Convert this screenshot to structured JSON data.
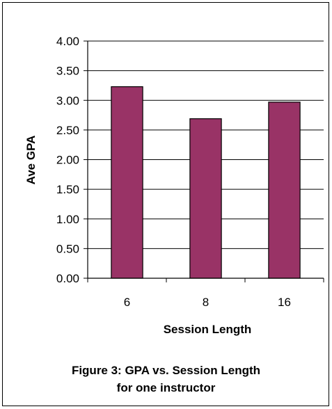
{
  "chart_data": {
    "type": "bar",
    "categories": [
      "6",
      "8",
      "16"
    ],
    "values": [
      3.23,
      2.69,
      2.97
    ],
    "xlabel": "Session Length",
    "ylabel": "Ave GPA",
    "ylim": [
      0,
      4
    ],
    "ytick_labels": [
      "0.00",
      "0.50",
      "1.00",
      "1.50",
      "2.00",
      "2.50",
      "3.00",
      "3.50",
      "4.00"
    ],
    "grid": true,
    "bar_color": "#993366"
  },
  "caption": {
    "line1": "Figure 3:  GPA vs. Session Length",
    "line2": "for one instructor"
  }
}
